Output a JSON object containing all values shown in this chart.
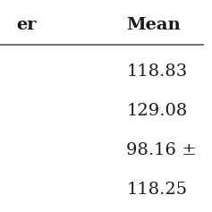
{
  "col1_header": "er",
  "col2_header": "Mean",
  "rows": [
    {
      "col1": "",
      "col2": "118.83"
    },
    {
      "col1": "",
      "col2": "129.08"
    },
    {
      "col1": "",
      "col2": "98.16 ±"
    },
    {
      "col1": "",
      "col2": "118.25"
    }
  ],
  "background_color": "#ffffff",
  "text_color": "#1a1a1a",
  "header_fontsize": 14,
  "data_fontsize": 14,
  "line_color": "#555555"
}
